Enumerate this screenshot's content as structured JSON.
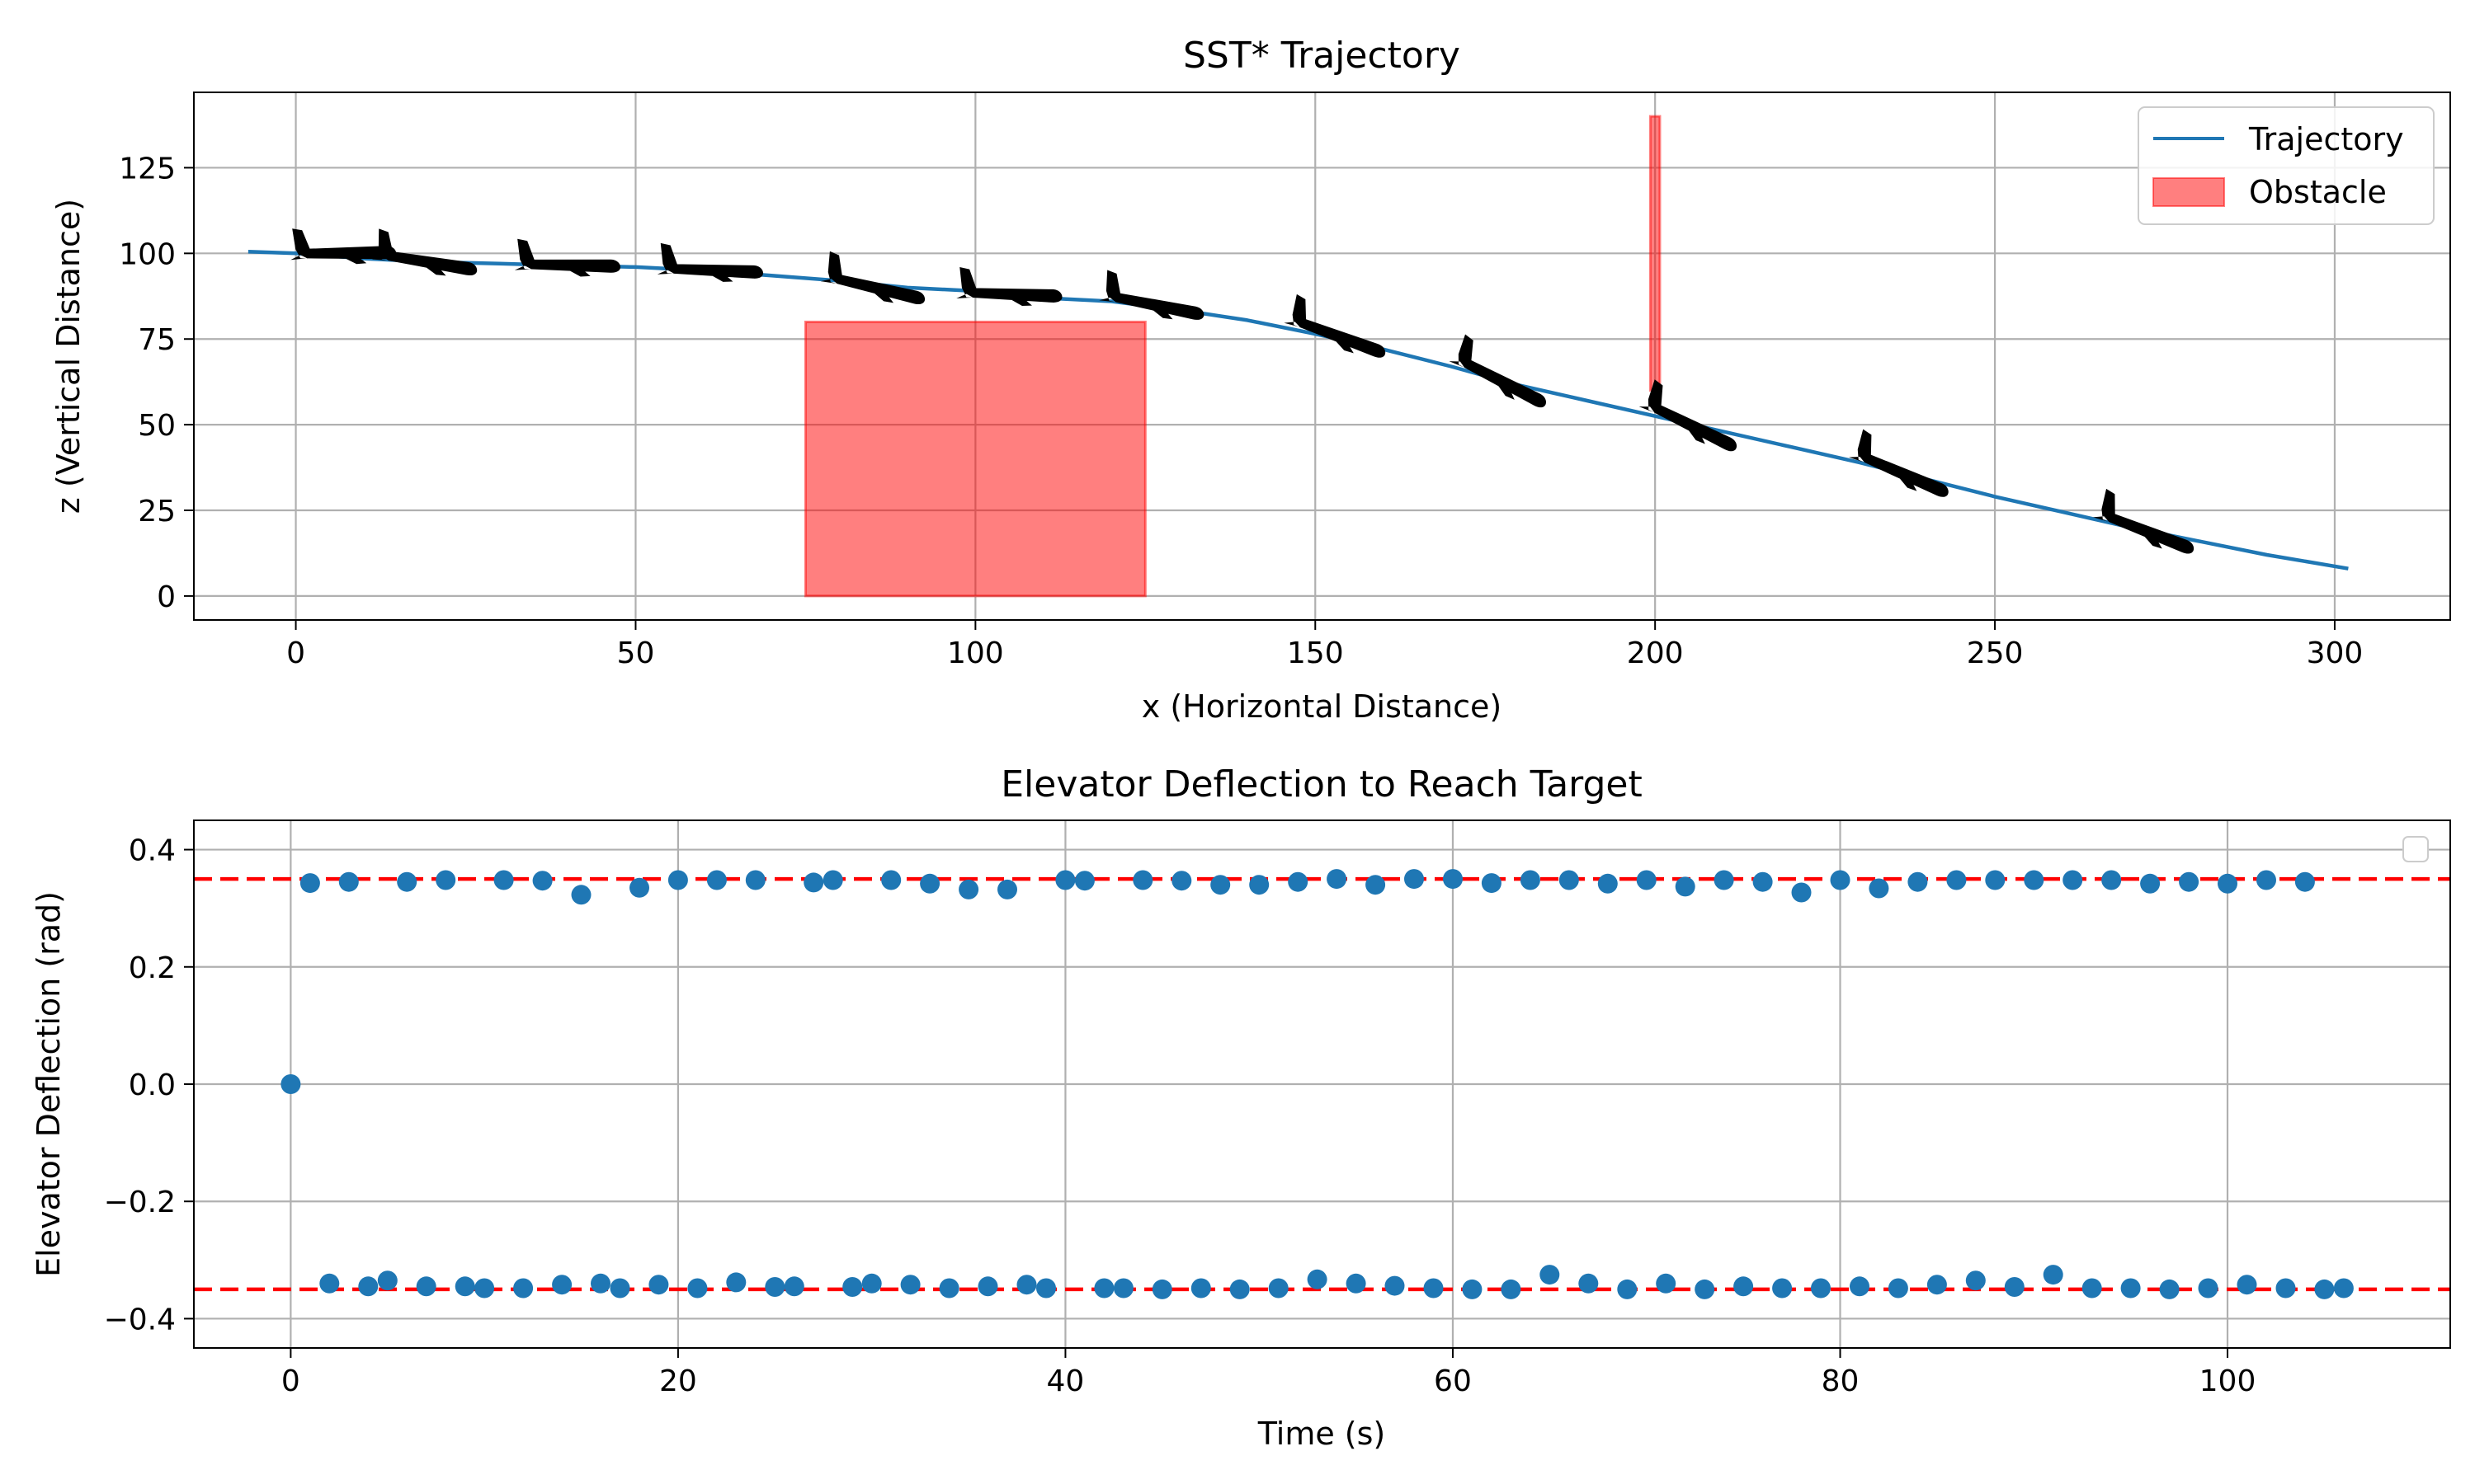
{
  "chart_data": [
    {
      "type": "line",
      "title": "SST* Trajectory",
      "xlabel": "x (Horizontal Distance)",
      "ylabel": "z (Vertical Distance)",
      "xlim": [
        -15,
        317
      ],
      "ylim": [
        -7,
        147
      ],
      "xticks": [
        0,
        50,
        100,
        150,
        200,
        250,
        300
      ],
      "yticks": [
        0,
        25,
        50,
        75,
        100,
        125
      ],
      "grid": true,
      "legend": {
        "position": "top-right",
        "entries": [
          {
            "label": "Trajectory",
            "kind": "line",
            "color": "#1f77b4"
          },
          {
            "label": "Obstacle",
            "kind": "patch",
            "color": "#ff0000",
            "alpha": 0.5
          }
        ]
      },
      "series": [
        {
          "name": "Trajectory",
          "color": "#1f77b4",
          "x": [
            -7,
            0,
            10,
            20,
            30,
            40,
            50,
            60,
            70,
            80,
            90,
            100,
            110,
            120,
            130,
            140,
            150,
            160,
            170,
            180,
            190,
            200,
            210,
            220,
            230,
            240,
            250,
            260,
            270,
            280,
            290,
            302
          ],
          "y": [
            100.5,
            100,
            98.5,
            97.5,
            97,
            96.5,
            96,
            95,
            93.5,
            92,
            90,
            89,
            87,
            86,
            83.5,
            80.5,
            76.5,
            72,
            67,
            61.5,
            57,
            52.5,
            48,
            43.5,
            39,
            34,
            29,
            24.5,
            20,
            16,
            12,
            8
          ]
        }
      ],
      "obstacles": [
        {
          "label": "Obstacle",
          "x0": 75,
          "x1": 125,
          "y0": 0,
          "y1": 80,
          "color": "#ff0000",
          "alpha": 0.5
        },
        {
          "label": "Obstacle",
          "x0": 199.3,
          "x1": 200.7,
          "y0": 60,
          "y1": 140,
          "color": "#ff0000",
          "alpha": 0.5
        }
      ],
      "aircraft_markers": [
        {
          "x": 7,
          "y": 100,
          "pitch": 0
        },
        {
          "x": 19,
          "y": 97.5,
          "pitch": -10
        },
        {
          "x": 40,
          "y": 96.5,
          "pitch": -2
        },
        {
          "x": 61,
          "y": 95,
          "pitch": -3
        },
        {
          "x": 85,
          "y": 90,
          "pitch": -14
        },
        {
          "x": 105,
          "y": 88,
          "pitch": -3
        },
        {
          "x": 126,
          "y": 85,
          "pitch": -12
        },
        {
          "x": 153,
          "y": 76,
          "pitch": -21
        },
        {
          "x": 177,
          "y": 63,
          "pitch": -28
        },
        {
          "x": 205,
          "y": 50,
          "pitch": -27
        },
        {
          "x": 236,
          "y": 36,
          "pitch": -24
        },
        {
          "x": 272,
          "y": 19,
          "pitch": -22
        }
      ]
    },
    {
      "type": "scatter",
      "title": "Elevator Deflection to Reach Target",
      "xlabel": "Time (s)",
      "ylabel": "Elevator Deflection (rad)",
      "xlim": [
        -5,
        111.5
      ],
      "ylim": [
        -0.45,
        0.45
      ],
      "xticks": [
        0,
        20,
        40,
        60,
        80,
        100
      ],
      "yticks": [
        -0.4,
        -0.2,
        0.0,
        0.2,
        0.4
      ],
      "ytick_labels": [
        "−0.4",
        "−0.2",
        "0.0",
        "0.2",
        "0.4"
      ],
      "grid": true,
      "legend": {
        "position": "top-right",
        "entries": []
      },
      "reference_lines": [
        {
          "y": 0.35,
          "color": "#ff0000",
          "style": "dashed"
        },
        {
          "y": -0.35,
          "color": "#ff0000",
          "style": "dashed"
        }
      ],
      "series": [
        {
          "color": "#1f77b4",
          "x": [
            0,
            1,
            2,
            3,
            4,
            5,
            6,
            7,
            8,
            9,
            10,
            11,
            12,
            13,
            14,
            15,
            16,
            17,
            18,
            19,
            20,
            21,
            22,
            23,
            24,
            25,
            26,
            27,
            28,
            29,
            30,
            31,
            32,
            33,
            34,
            35,
            36,
            37,
            38,
            39,
            40,
            41,
            42,
            43,
            44,
            45,
            46,
            47,
            48,
            49,
            50,
            51,
            52,
            53,
            54,
            55,
            56,
            57,
            58,
            59,
            60,
            61,
            62,
            63,
            64,
            65,
            66,
            67,
            68,
            69,
            70,
            71,
            72,
            73,
            74,
            75,
            76,
            77,
            78,
            79,
            80,
            81,
            82,
            83,
            84,
            85,
            86,
            87,
            88,
            89,
            90,
            91,
            92,
            93,
            94,
            95,
            96,
            97,
            98,
            99,
            100,
            101,
            102,
            103,
            104,
            105,
            106
          ],
          "y": [
            0.0,
            0.343,
            -0.34,
            0.345,
            -0.345,
            -0.335,
            0.345,
            -0.345,
            0.348,
            -0.345,
            -0.348,
            0.348,
            -0.348,
            0.347,
            -0.342,
            0.323,
            -0.34,
            -0.348,
            0.335,
            -0.342,
            0.348,
            -0.348,
            0.348,
            -0.338,
            0.348,
            -0.346,
            -0.345,
            0.344,
            0.348,
            -0.346,
            -0.34,
            0.348,
            -0.342,
            0.342,
            -0.348,
            0.332,
            -0.345,
            0.332,
            -0.342,
            -0.348,
            0.348,
            0.347,
            -0.348,
            -0.348,
            0.348,
            -0.35,
            0.347,
            -0.348,
            0.34,
            -0.35,
            0.34,
            -0.348,
            0.345,
            -0.333,
            0.35,
            -0.34,
            0.34,
            -0.344,
            0.35,
            -0.348,
            0.35,
            -0.35,
            0.343,
            -0.35,
            0.348,
            -0.325,
            0.348,
            -0.34,
            0.342,
            -0.35,
            0.348,
            -0.34,
            0.337,
            -0.35,
            0.348,
            -0.345,
            0.345,
            -0.348,
            0.327,
            -0.348,
            0.348,
            -0.345,
            0.334,
            -0.348,
            0.345,
            -0.342,
            0.348,
            -0.335,
            0.348,
            -0.346,
            0.348,
            -0.325,
            0.348,
            -0.348,
            0.348,
            -0.348,
            0.342,
            -0.35,
            0.345,
            -0.348,
            0.342,
            -0.342,
            0.348,
            -0.348,
            0.345,
            -0.35,
            -0.348
          ]
        }
      ]
    }
  ]
}
